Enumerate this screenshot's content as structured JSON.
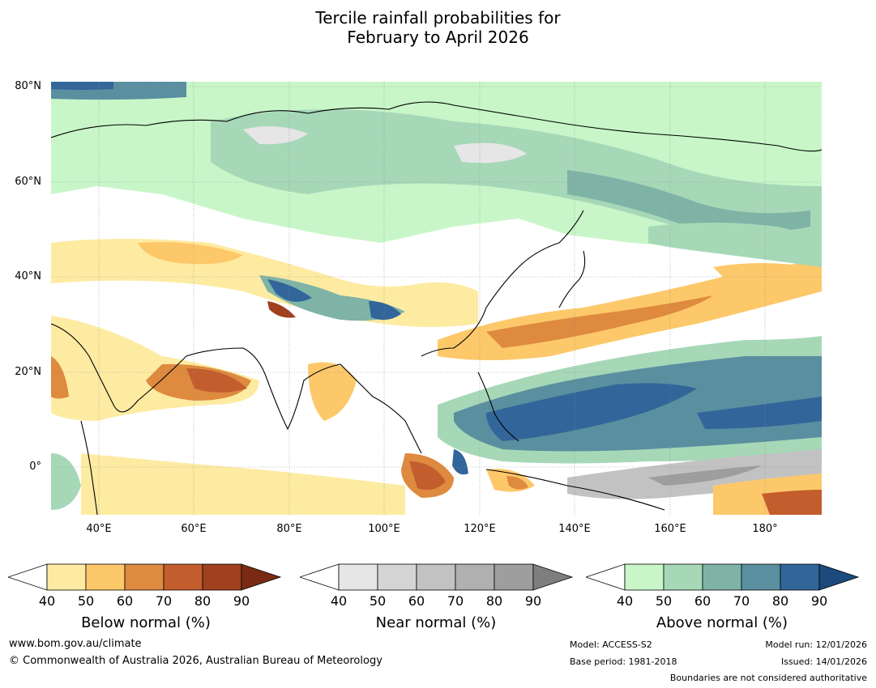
{
  "title_line1": "Tercile rainfall probabilities for",
  "title_line2": "February to April 2026",
  "map": {
    "lat_labels": [
      "80°N",
      "60°N",
      "40°N",
      "20°N",
      "0°"
    ],
    "lon_labels": [
      "40°E",
      "60°E",
      "80°E",
      "100°E",
      "120°E",
      "140°E",
      "160°E",
      "180°"
    ],
    "extent": {
      "lon_min": 30,
      "lon_max": 192,
      "lat_min": -10,
      "lat_max": 81
    }
  },
  "colorbars": [
    {
      "title": "Below normal (%)",
      "ticks": [
        "40",
        "50",
        "60",
        "70",
        "80",
        "90"
      ],
      "colors": [
        "#ffffff",
        "#feeba2",
        "#fdc86a",
        "#de8a3f",
        "#c45d2e",
        "#a0401f",
        "#7a2a12"
      ]
    },
    {
      "title": "Near normal (%)",
      "ticks": [
        "40",
        "50",
        "60",
        "70",
        "80",
        "90"
      ],
      "colors": [
        "#ffffff",
        "#e6e6e6",
        "#d4d4d4",
        "#c2c2c2",
        "#b0b0b0",
        "#9e9e9e",
        "#7e7e7e"
      ]
    },
    {
      "title": "Above normal (%)",
      "ticks": [
        "40",
        "50",
        "60",
        "70",
        "80",
        "90"
      ],
      "colors": [
        "#ffffff",
        "#c8f6c8",
        "#a6d8b8",
        "#7fb3a6",
        "#5a8fa0",
        "#32669a",
        "#1d4a7c"
      ]
    }
  ],
  "footer": {
    "url": "www.bom.gov.au/climate",
    "copyright": "© Commonwealth of Australia 2026, Australian Bureau of Meteorology",
    "model": "Model: ACCESS-S2",
    "base_period": "Base period: 1981-2018",
    "model_run": "Model run: 12/01/2026",
    "issued": "Issued: 14/01/2026",
    "boundaries": "Boundaries are not considered authoritative"
  }
}
